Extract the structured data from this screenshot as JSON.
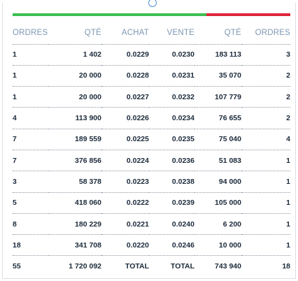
{
  "colors": {
    "bid": "#3dbf52",
    "ask": "#e0263d",
    "header_text": "#7b97b2"
  },
  "icons": {
    "top": "info-circle-icon"
  },
  "headers": [
    "ORDRES",
    "QTÉ",
    "ACHAT",
    "VENTE",
    "QTÉ",
    "ORDRES"
  ],
  "rows": [
    [
      "1",
      "1 402",
      "0.0229",
      "0.0230",
      "183 113",
      "3"
    ],
    [
      "1",
      "20 000",
      "0.0228",
      "0.0231",
      "35 070",
      "2"
    ],
    [
      "1",
      "20 000",
      "0.0227",
      "0.0232",
      "107 779",
      "2"
    ],
    [
      "4",
      "113 900",
      "0.0226",
      "0.0234",
      "76 655",
      "2"
    ],
    [
      "7",
      "189 559",
      "0.0225",
      "0.0235",
      "75 040",
      "4"
    ],
    [
      "7",
      "376 856",
      "0.0224",
      "0.0236",
      "51 083",
      "1"
    ],
    [
      "3",
      "58 378",
      "0.0223",
      "0.0238",
      "94 000",
      "1"
    ],
    [
      "5",
      "418 060",
      "0.0222",
      "0.0239",
      "105 000",
      "1"
    ],
    [
      "8",
      "180 229",
      "0.0221",
      "0.0240",
      "6 200",
      "1"
    ],
    [
      "18",
      "341 708",
      "0.0220",
      "0.0246",
      "10 000",
      "1"
    ]
  ],
  "total": [
    "55",
    "1 720 092",
    "TOTAL",
    "TOTAL",
    "743 940",
    "18"
  ]
}
